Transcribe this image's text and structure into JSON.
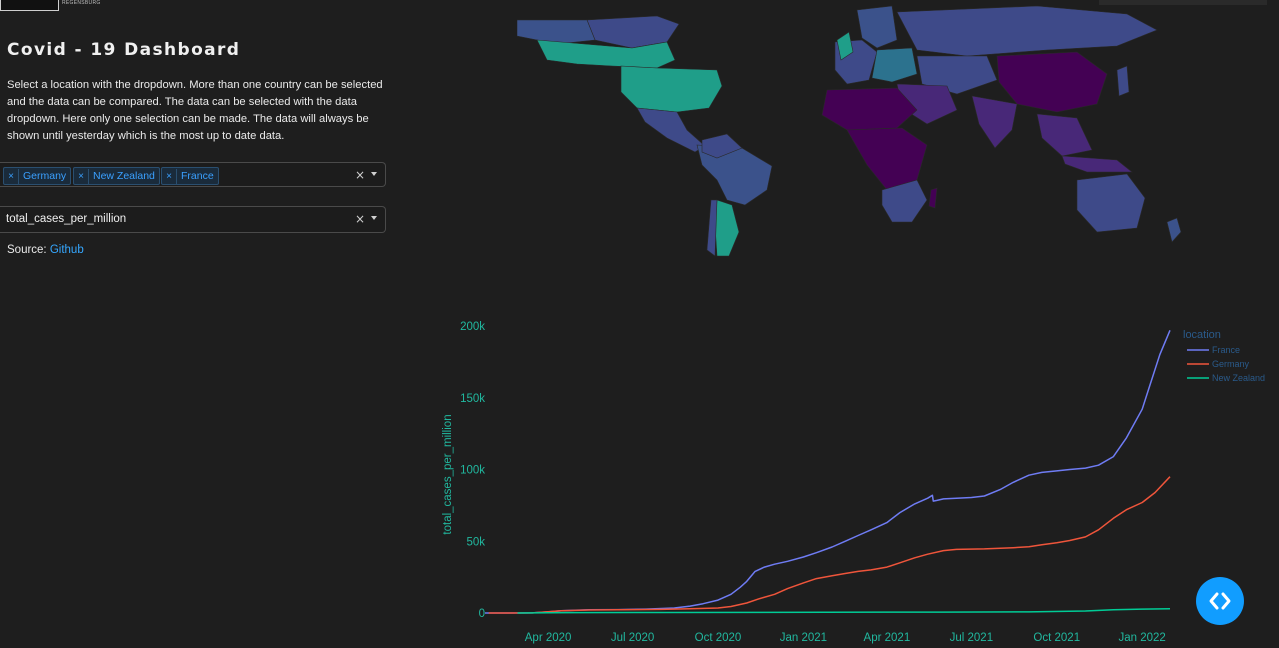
{
  "header": {
    "logo_lines": [
      "",
      "REGENSBURG"
    ]
  },
  "app": {
    "title": "Covid - 19 Dashboard",
    "description": "Select a location with the dropdown. More than one country can be selected and the data can be compared. The data can be selected with the data dropdown. Here only one selection can be made. The data will always be shown until yesterday which is the most up to date data."
  },
  "location_dropdown": {
    "selected": [
      "Germany",
      "New Zealand",
      "France"
    ],
    "clear_icon": "close-icon",
    "arrow_icon": "caret-down-icon"
  },
  "data_dropdown": {
    "value": "total_cases_per_million",
    "clear_icon": "close-icon",
    "arrow_icon": "caret-down-icon"
  },
  "source": {
    "label": "Source:",
    "link_text": "Github"
  },
  "colors": {
    "background": "#1e1e1e",
    "accent": "#119dff",
    "tick_text": "#21b89f",
    "france": "#6f7cf4",
    "germany": "#ef553b",
    "new_zealand": "#00cc96",
    "map_high": "#1f9e89",
    "map_mid": "#3e4a89",
    "map_low": "#440154"
  },
  "chart_data": {
    "type": "line",
    "xlabel": "",
    "ylabel": "total_cases_per_million",
    "legend_title": "location",
    "legend_position": "top-right",
    "grid": false,
    "x_ticks": [
      "Apr 2020",
      "Jul 2020",
      "Oct 2020",
      "Jan 2021",
      "Apr 2021",
      "Jul 2021",
      "Oct 2021",
      "Jan 2022"
    ],
    "y_ticks": [
      "0",
      "50k",
      "100k",
      "150k",
      "200k"
    ],
    "ylim": [
      0,
      200000
    ],
    "xlim": [
      "2020-01-24",
      "2022-01-31"
    ],
    "series": [
      {
        "name": "France",
        "color": "#6f7cf4",
        "points": [
          [
            "2020-01-24",
            0
          ],
          [
            "2020-03-15",
            100
          ],
          [
            "2020-04-01",
            800
          ],
          [
            "2020-04-15",
            1500
          ],
          [
            "2020-05-15",
            2200
          ],
          [
            "2020-06-15",
            2400
          ],
          [
            "2020-07-15",
            2700
          ],
          [
            "2020-08-15",
            3500
          ],
          [
            "2020-09-01",
            4800
          ],
          [
            "2020-09-15",
            6500
          ],
          [
            "2020-10-01",
            9000
          ],
          [
            "2020-10-15",
            13000
          ],
          [
            "2020-10-25",
            18000
          ],
          [
            "2020-11-01",
            22000
          ],
          [
            "2020-11-10",
            29000
          ],
          [
            "2020-11-20",
            32000
          ],
          [
            "2020-12-01",
            34000
          ],
          [
            "2020-12-15",
            36000
          ],
          [
            "2021-01-01",
            39000
          ],
          [
            "2021-01-15",
            42000
          ],
          [
            "2021-02-01",
            46000
          ],
          [
            "2021-02-15",
            50000
          ],
          [
            "2021-03-01",
            54000
          ],
          [
            "2021-03-15",
            58000
          ],
          [
            "2021-04-01",
            63000
          ],
          [
            "2021-04-15",
            70000
          ],
          [
            "2021-05-01",
            76000
          ],
          [
            "2021-05-15",
            80000
          ],
          [
            "2021-05-20",
            82000
          ],
          [
            "2021-05-21",
            78000
          ],
          [
            "2021-05-25",
            78500
          ],
          [
            "2021-06-01",
            79500
          ],
          [
            "2021-06-15",
            80000
          ],
          [
            "2021-07-01",
            80500
          ],
          [
            "2021-07-15",
            81500
          ],
          [
            "2021-08-01",
            86000
          ],
          [
            "2021-08-15",
            91000
          ],
          [
            "2021-09-01",
            96000
          ],
          [
            "2021-09-15",
            98000
          ],
          [
            "2021-10-01",
            99000
          ],
          [
            "2021-10-15",
            100000
          ],
          [
            "2021-11-01",
            101000
          ],
          [
            "2021-11-15",
            103000
          ],
          [
            "2021-12-01",
            109000
          ],
          [
            "2021-12-15",
            122000
          ],
          [
            "2022-01-01",
            142000
          ],
          [
            "2022-01-10",
            160000
          ],
          [
            "2022-01-20",
            180000
          ],
          [
            "2022-01-31",
            197000
          ]
        ]
      },
      {
        "name": "Germany",
        "color": "#ef553b",
        "points": [
          [
            "2020-01-28",
            0
          ],
          [
            "2020-03-15",
            100
          ],
          [
            "2020-04-01",
            900
          ],
          [
            "2020-04-15",
            1500
          ],
          [
            "2020-05-15",
            2100
          ],
          [
            "2020-07-01",
            2350
          ],
          [
            "2020-08-01",
            2500
          ],
          [
            "2020-09-01",
            3000
          ],
          [
            "2020-10-01",
            3500
          ],
          [
            "2020-10-15",
            4500
          ],
          [
            "2020-11-01",
            7000
          ],
          [
            "2020-11-15",
            10000
          ],
          [
            "2020-12-01",
            13000
          ],
          [
            "2020-12-15",
            17000
          ],
          [
            "2021-01-01",
            21000
          ],
          [
            "2021-01-15",
            24000
          ],
          [
            "2021-02-01",
            26000
          ],
          [
            "2021-02-15",
            27500
          ],
          [
            "2021-03-01",
            29000
          ],
          [
            "2021-03-15",
            30000
          ],
          [
            "2021-04-01",
            32000
          ],
          [
            "2021-04-15",
            35000
          ],
          [
            "2021-05-01",
            38500
          ],
          [
            "2021-05-15",
            41000
          ],
          [
            "2021-06-01",
            43500
          ],
          [
            "2021-06-15",
            44300
          ],
          [
            "2021-07-15",
            44700
          ],
          [
            "2021-08-15",
            45500
          ],
          [
            "2021-09-01",
            46200
          ],
          [
            "2021-09-15",
            47500
          ],
          [
            "2021-10-01",
            49000
          ],
          [
            "2021-10-15",
            50500
          ],
          [
            "2021-11-01",
            53000
          ],
          [
            "2021-11-15",
            58000
          ],
          [
            "2021-12-01",
            66000
          ],
          [
            "2021-12-15",
            72000
          ],
          [
            "2022-01-01",
            77000
          ],
          [
            "2022-01-15",
            84000
          ],
          [
            "2022-01-31",
            95000
          ]
        ]
      },
      {
        "name": "New Zealand",
        "color": "#00cc96",
        "points": [
          [
            "2020-02-28",
            0
          ],
          [
            "2020-04-01",
            130
          ],
          [
            "2020-05-01",
            300
          ],
          [
            "2020-08-01",
            320
          ],
          [
            "2021-06-01",
            600
          ],
          [
            "2021-09-01",
            800
          ],
          [
            "2021-11-01",
            1400
          ],
          [
            "2021-12-01",
            2200
          ],
          [
            "2022-01-01",
            2700
          ],
          [
            "2022-01-31",
            3000
          ]
        ]
      }
    ]
  }
}
